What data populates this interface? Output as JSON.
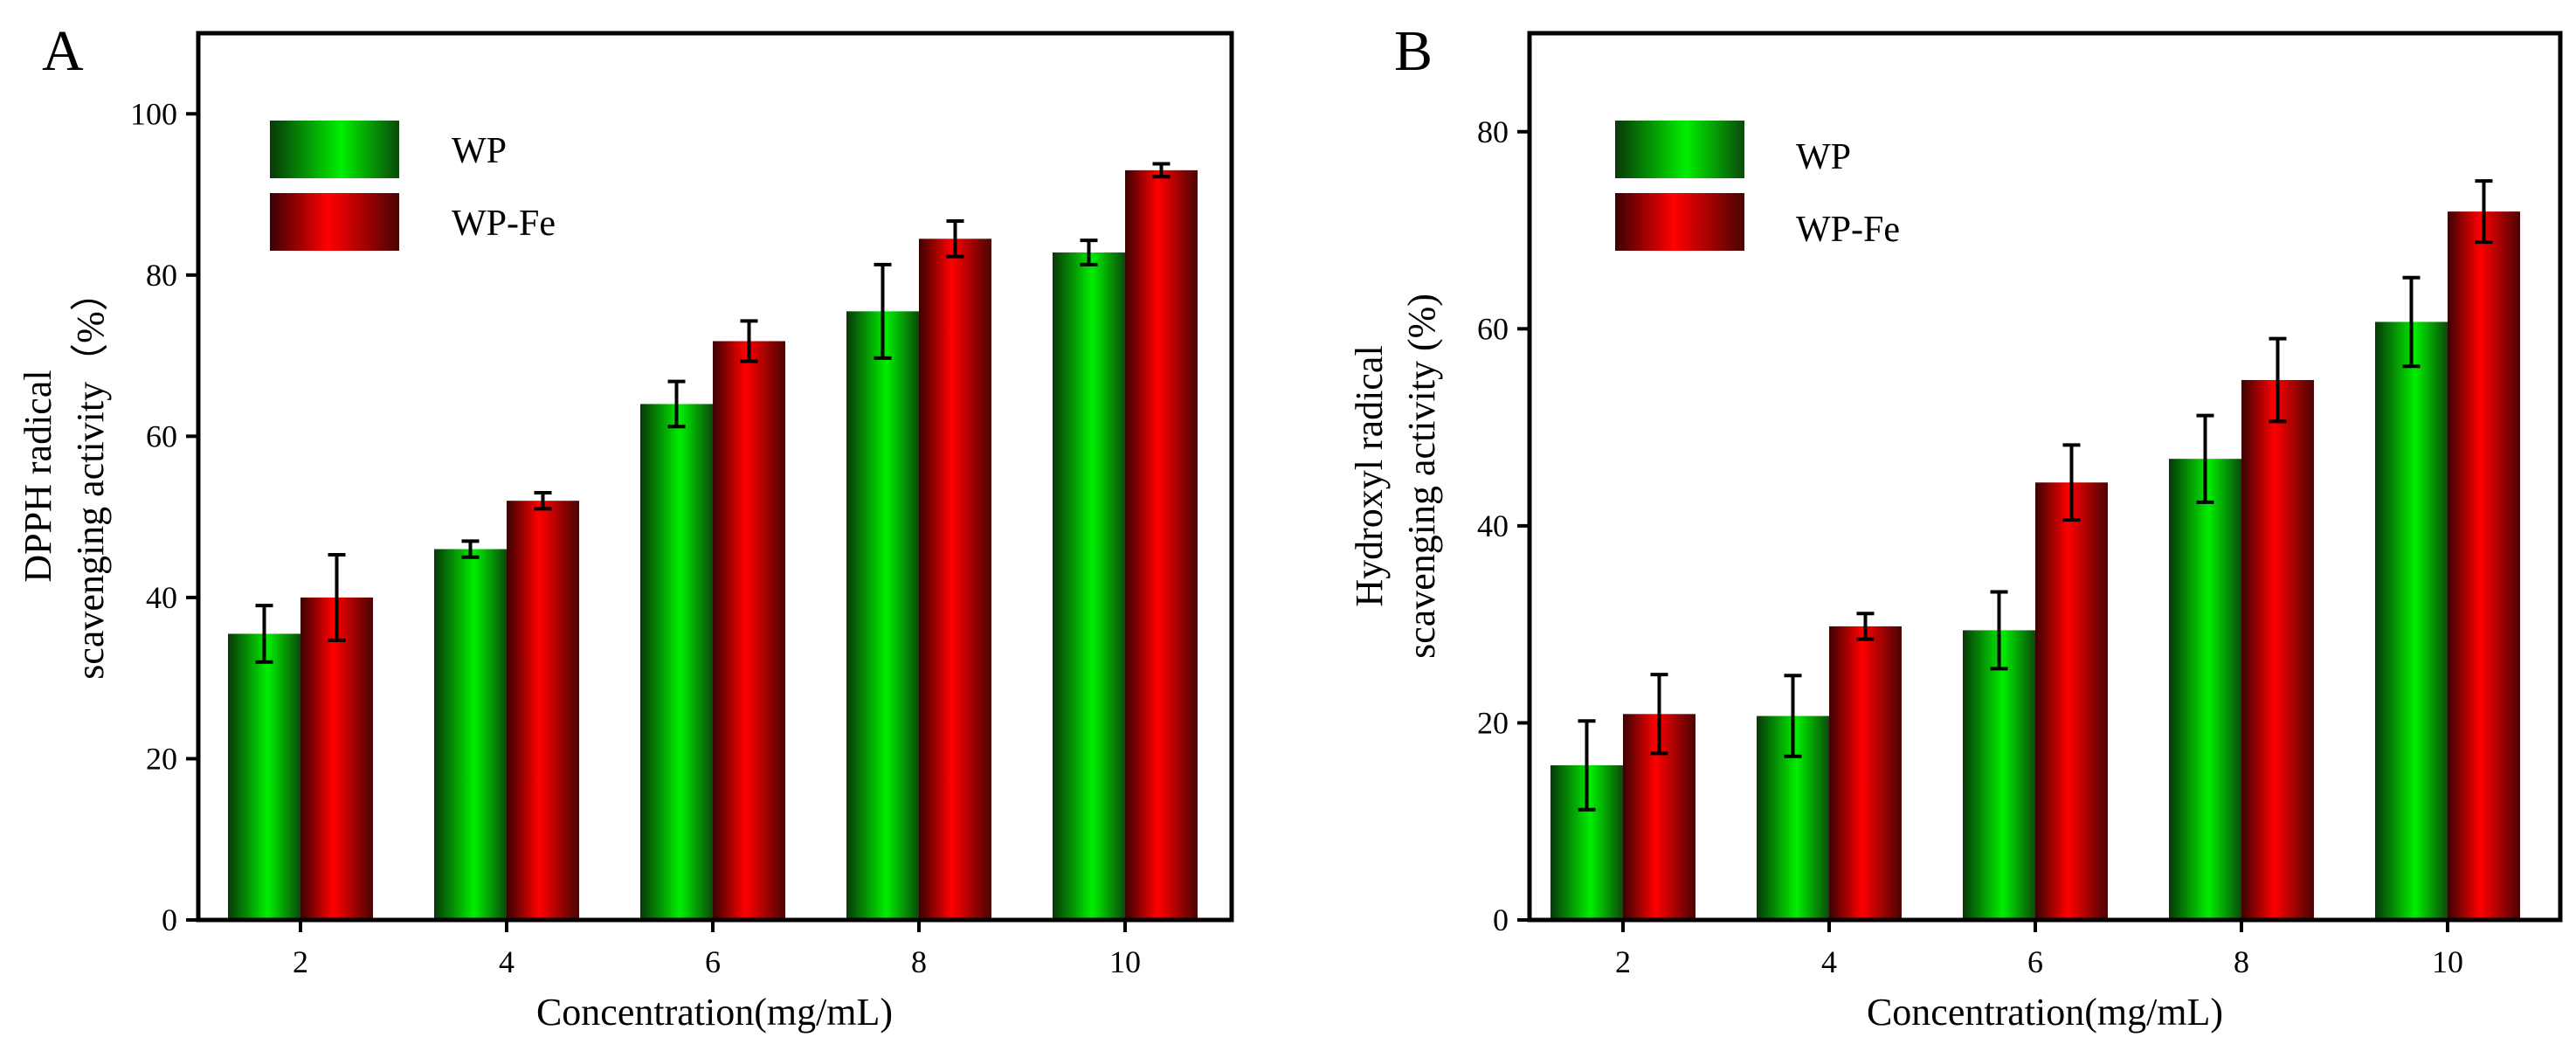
{
  "colors": {
    "wp": "#00ee00",
    "wp_dark": "#083808",
    "wpfe": "#ff0000",
    "wpfe_dark": "#3a0202",
    "axis": "#000000"
  },
  "chart_data": [
    {
      "type": "bar",
      "panel_label": "A",
      "categories": [
        "2",
        "4",
        "6",
        "8",
        "10"
      ],
      "series": [
        {
          "name": "WP",
          "values": [
            35.5,
            46,
            64,
            75.5,
            82.8
          ],
          "errors": [
            3.5,
            1,
            2.8,
            5.8,
            1.5
          ]
        },
        {
          "name": "WP-Fe",
          "values": [
            40,
            52,
            71.8,
            84.5,
            93
          ],
          "errors": [
            5.3,
            1,
            2.5,
            2.2,
            0.8
          ]
        }
      ],
      "xlabel": "Concentration(mg/mL)",
      "ylabel_lines": [
        "DPPH radical",
        "scavenging activity（%）"
      ],
      "ylim": [
        0,
        110
      ],
      "yticks": [
        0,
        20,
        40,
        60,
        80,
        100
      ],
      "legend_position": "top-left"
    },
    {
      "type": "bar",
      "panel_label": "B",
      "categories": [
        "2",
        "4",
        "6",
        "8",
        "10"
      ],
      "series": [
        {
          "name": "WP",
          "values": [
            15.7,
            20.7,
            29.4,
            46.8,
            60.7
          ],
          "errors": [
            4.5,
            4.1,
            3.9,
            4.4,
            4.5
          ]
        },
        {
          "name": "WP-Fe",
          "values": [
            20.9,
            29.8,
            44.4,
            54.8,
            71.9
          ],
          "errors": [
            4,
            1.3,
            3.8,
            4.2,
            3.1
          ]
        }
      ],
      "xlabel": "Concentration(mg/mL)",
      "ylabel_lines": [
        "Hydroxyl radical",
        "scavenging activity (%)"
      ],
      "ylim": [
        0,
        90
      ],
      "yticks": [
        0,
        20,
        40,
        60,
        80
      ],
      "legend_position": "top-left"
    }
  ]
}
